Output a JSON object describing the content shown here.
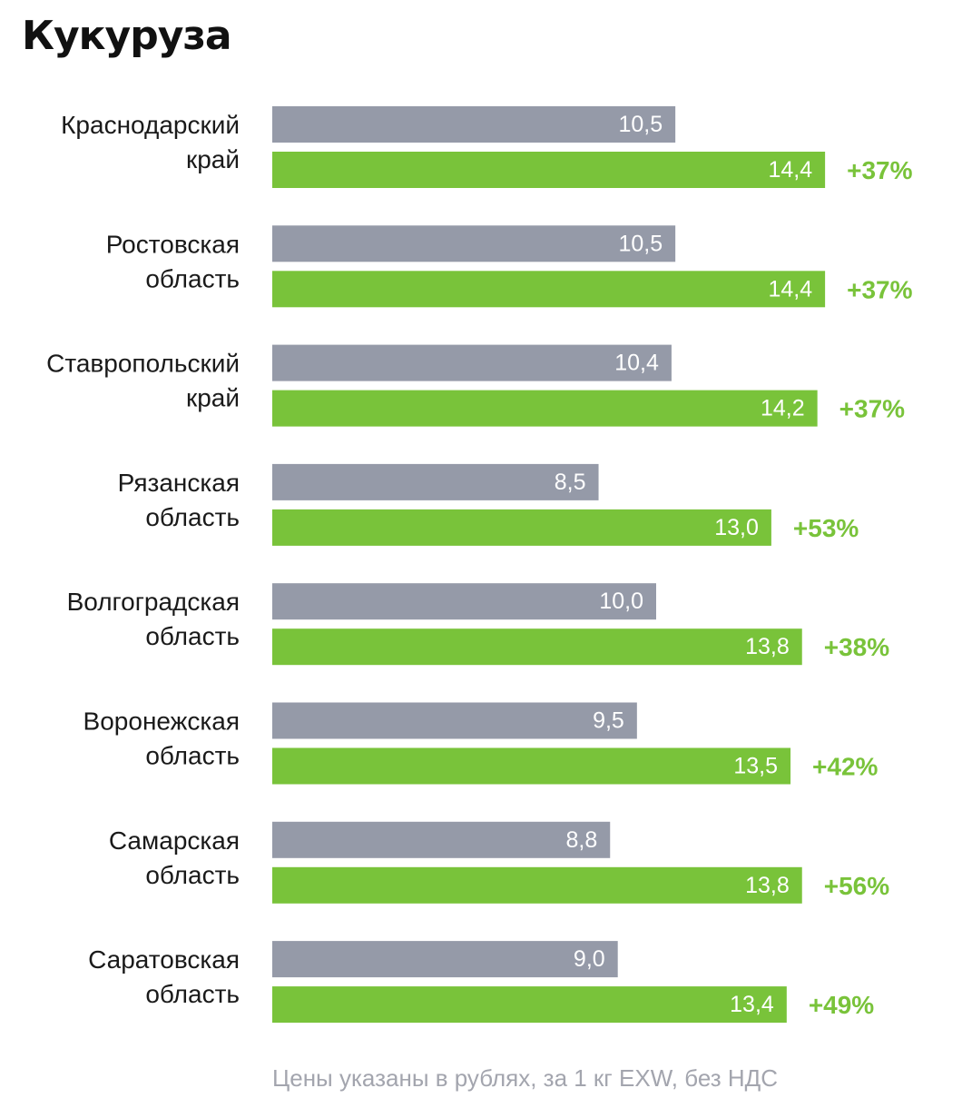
{
  "title": "Кукуруза",
  "footnote": "Цены указаны в рублях, за 1 кг EXW, без НДС",
  "colors": {
    "gray_bar": "#959aa8",
    "green_bar": "#79c33a",
    "pct_text": "#79c33a",
    "value_text": "#ffffff"
  },
  "chart_data": {
    "type": "bar",
    "orientation": "horizontal",
    "title": "Кукуруза",
    "categories": [
      [
        "Краснодарский",
        "край"
      ],
      [
        "Ростовская",
        "область"
      ],
      [
        "Ставропольский",
        "край"
      ],
      [
        "Рязанская",
        "область"
      ],
      [
        "Волгоградская",
        "область"
      ],
      [
        "Воронежская",
        "область"
      ],
      [
        "Самарская",
        "область"
      ],
      [
        "Саратовская",
        "область"
      ]
    ],
    "series": [
      {
        "color": "#959aa8",
        "values": [
          10.5,
          10.5,
          10.4,
          8.5,
          10.0,
          9.5,
          8.8,
          9.0
        ],
        "labels": [
          "10,5",
          "10,5",
          "10,4",
          "8,5",
          "10,0",
          "9,5",
          "8,8",
          "9,0"
        ]
      },
      {
        "color": "#79c33a",
        "values": [
          14.4,
          14.4,
          14.2,
          13.0,
          13.8,
          13.5,
          13.8,
          13.4
        ],
        "labels": [
          "14,4",
          "14,4",
          "14,2",
          "13,0",
          "13,8",
          "13,5",
          "13,8",
          "13,4"
        ]
      }
    ],
    "changes": [
      "+37%",
      "+37%",
      "+37%",
      "+53%",
      "+38%",
      "+42%",
      "+56%",
      "+49%"
    ],
    "grid": false,
    "legend": "none"
  }
}
